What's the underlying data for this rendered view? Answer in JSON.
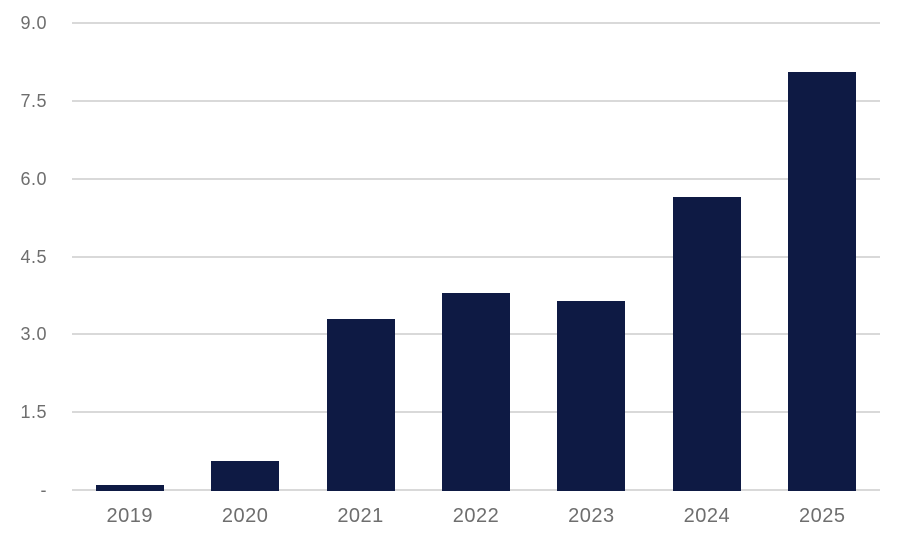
{
  "chart_data": {
    "type": "bar",
    "title": "",
    "xlabel": "",
    "ylabel": "",
    "categories": [
      "2019",
      "2020",
      "2021",
      "2022",
      "2023",
      "2024",
      "2025"
    ],
    "values": [
      0.1,
      0.55,
      3.3,
      3.8,
      3.65,
      5.65,
      8.05
    ],
    "ylim": [
      0,
      9
    ],
    "yticks": [
      0,
      1.5,
      3.0,
      4.5,
      6.0,
      7.5,
      9.0
    ],
    "ytick_labels": [
      "-",
      "1.5",
      "3.0",
      "4.5",
      "6.0",
      "7.5",
      "9.0"
    ],
    "grid": true,
    "legend": false,
    "colors": {
      "bar": "#0e1a44",
      "gridline": "#d9d9d9",
      "tick_label": "#6e6e6e",
      "background": "#ffffff"
    }
  }
}
